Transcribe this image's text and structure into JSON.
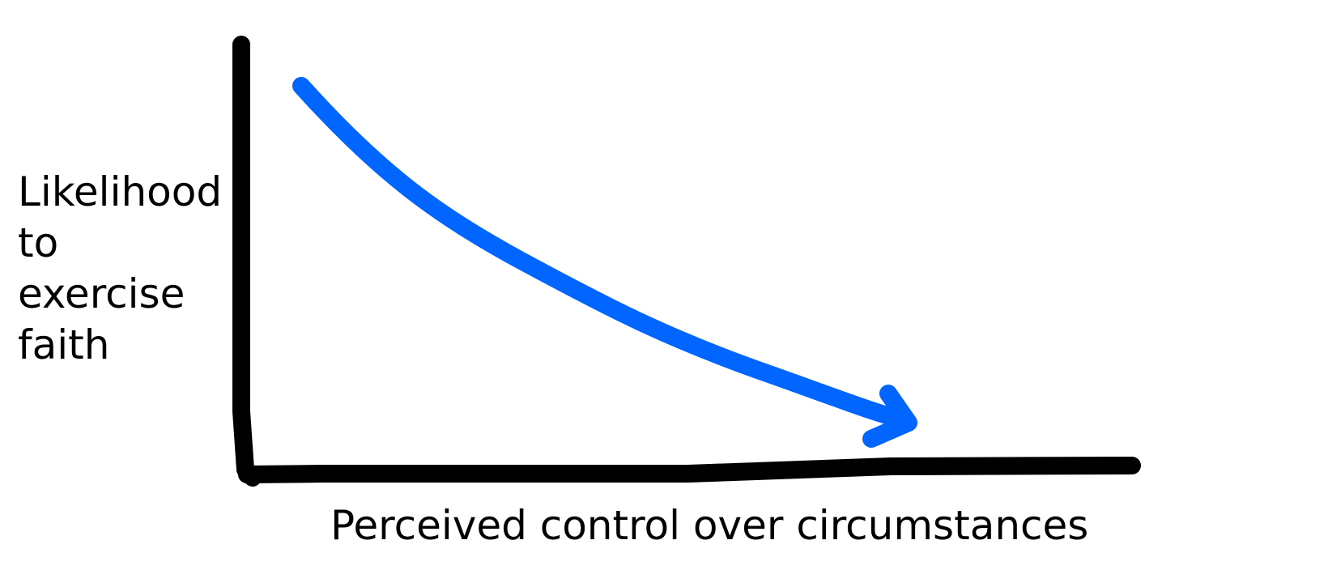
{
  "y_axis_label_lines": [
    "Likelihood",
    "to",
    "exercise",
    "faith"
  ],
  "x_axis_label": "Perceived control over circumstances",
  "colors": {
    "axes": "#000000",
    "trend_arrow": "#0066ff"
  }
}
